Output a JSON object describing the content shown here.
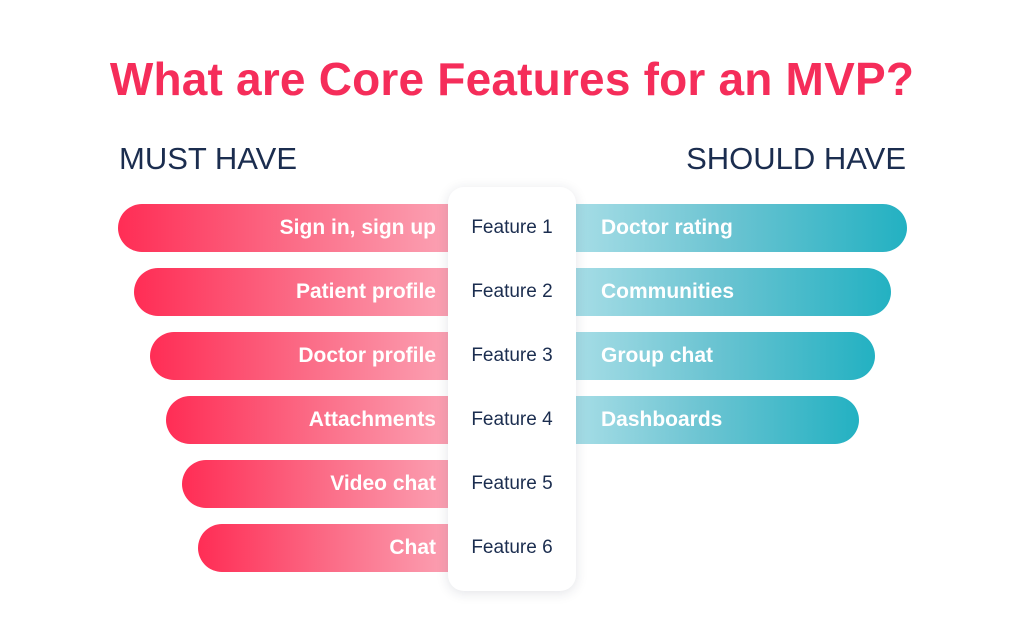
{
  "title": "What are Core Features for an MVP?",
  "headings": {
    "must_have": "MUST HAVE",
    "should_have": "SHOULD HAVE"
  },
  "must_have": [
    "Sign in, sign up",
    "Patient profile",
    "Doctor profile",
    "Attachments",
    "Video chat",
    "Chat"
  ],
  "features": [
    "Feature 1",
    "Feature 2",
    "Feature 3",
    "Feature 4",
    "Feature 5",
    "Feature 6"
  ],
  "should_have": [
    "Doctor rating",
    "Communities",
    "Group chat",
    "Dashboards"
  ],
  "colors": {
    "title": "#f52d5a",
    "heading": "#1b2d4f",
    "must_start": "#ff2d55",
    "must_end": "#fba5b6",
    "should_start": "#a6dde6",
    "should_end": "#23b1c2"
  }
}
